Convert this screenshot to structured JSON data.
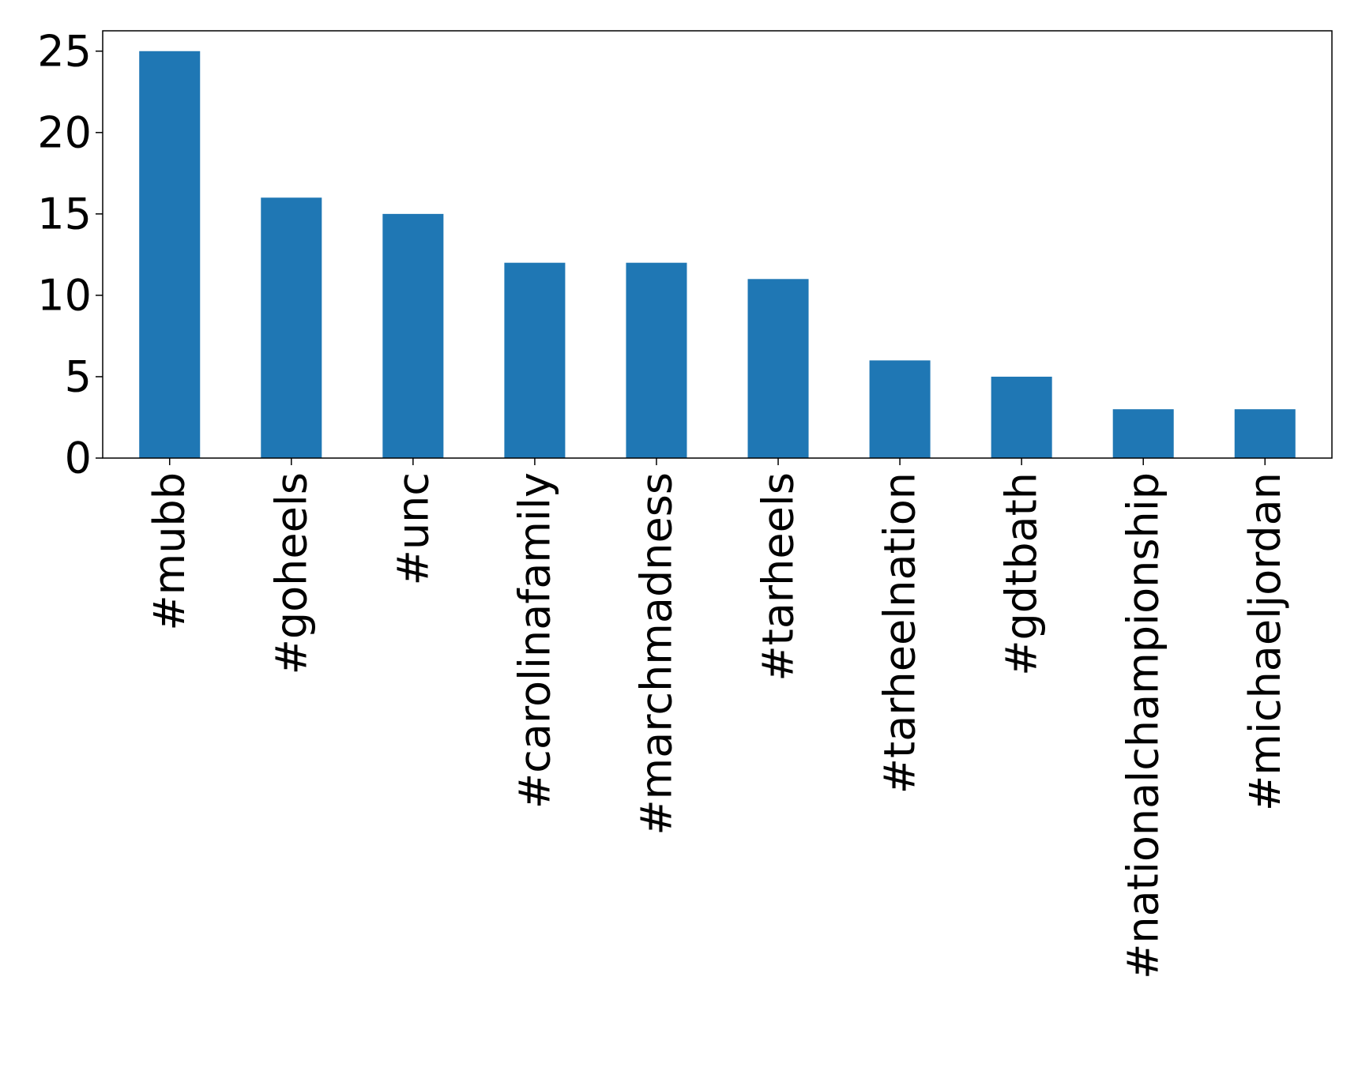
{
  "chart_data": {
    "type": "bar",
    "title": "",
    "xlabel": "",
    "ylabel": "",
    "categories": [
      "#mubb",
      "#goheels",
      "#unc",
      "#carolinafamily",
      "#marchmadness",
      "#tarheels",
      "#tarheelnation",
      "#gdtbath",
      "#nationalchampionship",
      "#michaeljordan"
    ],
    "values": [
      25,
      16,
      15,
      12,
      12,
      11,
      6,
      5,
      3,
      3
    ],
    "ylim": [
      0,
      26.25
    ],
    "yticks": [
      "0",
      "5",
      "10",
      "15",
      "20",
      "25"
    ],
    "grid": false,
    "legend": "none",
    "colors": {
      "bar": "#1f77b4",
      "axis": "#000000",
      "background": "#ffffff"
    }
  }
}
